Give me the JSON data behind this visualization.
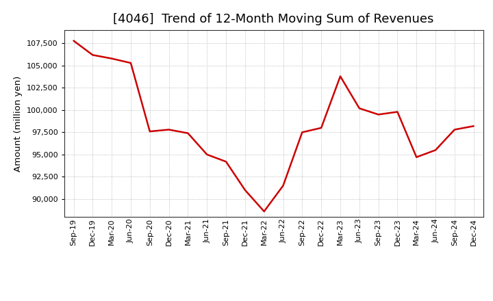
{
  "title": "[4046]  Trend of 12-Month Moving Sum of Revenues",
  "ylabel": "Amount (million yen)",
  "line_color": "#cc0000",
  "background_color": "#ffffff",
  "plot_bg_color": "#ffffff",
  "grid_color": "#aaaaaa",
  "labels": [
    "Sep-19",
    "Dec-19",
    "Mar-20",
    "Jun-20",
    "Sep-20",
    "Dec-20",
    "Mar-21",
    "Jun-21",
    "Sep-21",
    "Dec-21",
    "Mar-22",
    "Jun-22",
    "Sep-22",
    "Dec-22",
    "Mar-23",
    "Jun-23",
    "Sep-23",
    "Dec-23",
    "Mar-24",
    "Jun-24",
    "Sep-24",
    "Dec-24"
  ],
  "values": [
    107800,
    106200,
    105800,
    105300,
    97600,
    97800,
    97400,
    95000,
    94200,
    91000,
    88600,
    91500,
    97500,
    98000,
    103800,
    100200,
    99500,
    99800,
    94700,
    95500,
    97800,
    98200
  ],
  "ylim": [
    88000,
    109000
  ],
  "yticks": [
    90000,
    92500,
    95000,
    97500,
    100000,
    102500,
    105000,
    107500
  ],
  "title_fontsize": 13,
  "tick_fontsize": 8,
  "ylabel_fontsize": 9.5
}
